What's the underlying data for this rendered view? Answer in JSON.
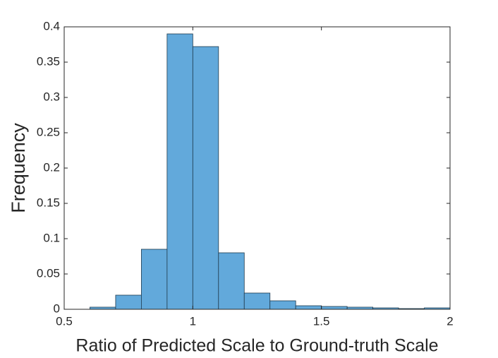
{
  "chart_data": {
    "type": "histogram",
    "xlabel": "Ratio of Predicted Scale to Ground-truth Scale",
    "ylabel": "Frequency",
    "bins": [
      0.6,
      0.7,
      0.8,
      0.9,
      1.0,
      1.1,
      1.2,
      1.3,
      1.4,
      1.5,
      1.6,
      1.7,
      1.8,
      1.9,
      2.0
    ],
    "values": [
      0.003,
      0.02,
      0.085,
      0.39,
      0.372,
      0.08,
      0.023,
      0.012,
      0.005,
      0.004,
      0.003,
      0.002,
      0.001,
      0.002
    ],
    "color": "#62a9db",
    "edge_color": "#1f3a4d",
    "xlim": [
      0.5,
      2
    ],
    "xticks": [
      0.5,
      1,
      1.5,
      2
    ],
    "ylim": [
      0,
      0.4
    ],
    "yticks": [
      0,
      0.05,
      0.1,
      0.15,
      0.2,
      0.25,
      0.3,
      0.35,
      0.4
    ]
  }
}
